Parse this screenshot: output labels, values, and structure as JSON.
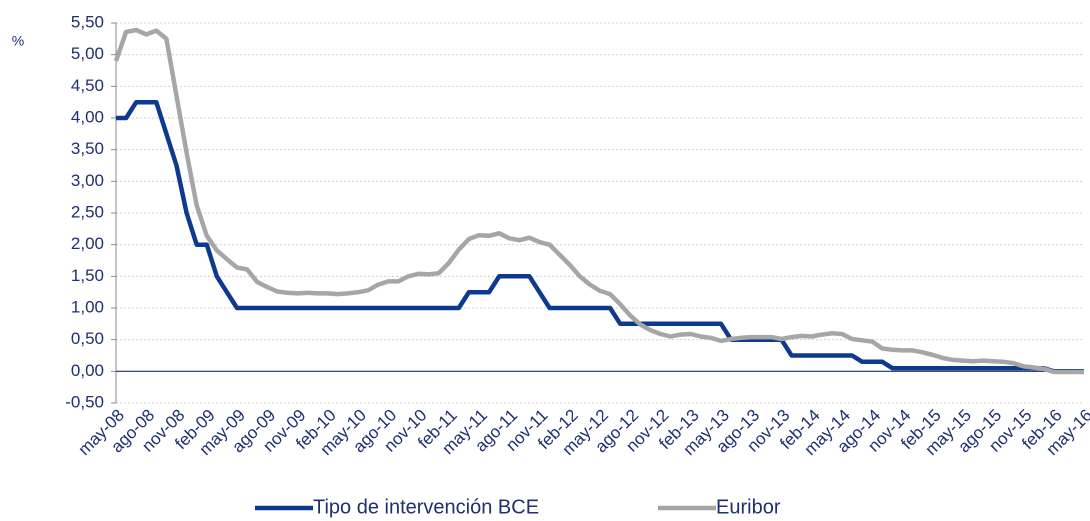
{
  "chart_data": {
    "type": "line",
    "ylabel": "%",
    "categories": [
      "may-08",
      null,
      null,
      "ago-08",
      null,
      null,
      "nov-08",
      null,
      null,
      "feb-09",
      null,
      null,
      "may-09",
      null,
      null,
      "ago-09",
      null,
      null,
      "nov-09",
      null,
      null,
      "feb-10",
      null,
      null,
      "may-10",
      null,
      null,
      "ago-10",
      null,
      null,
      "nov-10",
      null,
      null,
      "feb-11",
      null,
      null,
      "may-11",
      null,
      null,
      "ago-11",
      null,
      null,
      "nov-11",
      null,
      null,
      "feb-12",
      null,
      null,
      "may-12",
      null,
      null,
      "ago-12",
      null,
      null,
      "nov-12",
      null,
      null,
      "feb-13",
      null,
      null,
      "may-13",
      null,
      null,
      "ago-13",
      null,
      null,
      "nov-13",
      null,
      null,
      "feb-14",
      null,
      null,
      "may-14",
      null,
      null,
      "ago-14",
      null,
      null,
      "nov-14",
      null,
      null,
      "feb-15",
      null,
      null,
      "may-15",
      null,
      null,
      "ago-15",
      null,
      null,
      "nov-15",
      null,
      null,
      "feb-16",
      null,
      null,
      "may-16"
    ],
    "series": [
      {
        "name": "Tipo de intervención BCE",
        "color": "#0d3a8e",
        "values": [
          4.0,
          4.0,
          4.25,
          4.25,
          4.25,
          3.75,
          3.25,
          2.5,
          2.0,
          2.0,
          1.5,
          1.25,
          1.0,
          1.0,
          1.0,
          1.0,
          1.0,
          1.0,
          1.0,
          1.0,
          1.0,
          1.0,
          1.0,
          1.0,
          1.0,
          1.0,
          1.0,
          1.0,
          1.0,
          1.0,
          1.0,
          1.0,
          1.0,
          1.0,
          1.0,
          1.25,
          1.25,
          1.25,
          1.5,
          1.5,
          1.5,
          1.5,
          1.25,
          1.0,
          1.0,
          1.0,
          1.0,
          1.0,
          1.0,
          1.0,
          0.75,
          0.75,
          0.75,
          0.75,
          0.75,
          0.75,
          0.75,
          0.75,
          0.75,
          0.75,
          0.75,
          0.5,
          0.5,
          0.5,
          0.5,
          0.5,
          0.5,
          0.25,
          0.25,
          0.25,
          0.25,
          0.25,
          0.25,
          0.25,
          0.15,
          0.15,
          0.15,
          0.05,
          0.05,
          0.05,
          0.05,
          0.05,
          0.05,
          0.05,
          0.05,
          0.05,
          0.05,
          0.05,
          0.05,
          0.05,
          0.05,
          0.05,
          0.05,
          0.0,
          0.0,
          0.0,
          0.0
        ]
      },
      {
        "name": "Euribor",
        "color": "#a6a6a6",
        "values": [
          4.9,
          5.36,
          5.39,
          5.32,
          5.38,
          5.25,
          4.35,
          3.45,
          2.62,
          2.14,
          1.91,
          1.77,
          1.64,
          1.61,
          1.41,
          1.33,
          1.26,
          1.24,
          1.23,
          1.24,
          1.23,
          1.23,
          1.22,
          1.23,
          1.25,
          1.28,
          1.37,
          1.42,
          1.42,
          1.5,
          1.54,
          1.53,
          1.55,
          1.71,
          1.92,
          2.09,
          2.15,
          2.14,
          2.18,
          2.1,
          2.07,
          2.11,
          2.04,
          2.0,
          1.84,
          1.68,
          1.5,
          1.37,
          1.27,
          1.22,
          1.06,
          0.88,
          0.74,
          0.65,
          0.59,
          0.55,
          0.58,
          0.59,
          0.55,
          0.53,
          0.48,
          0.51,
          0.53,
          0.54,
          0.54,
          0.54,
          0.51,
          0.54,
          0.56,
          0.55,
          0.58,
          0.6,
          0.59,
          0.51,
          0.49,
          0.47,
          0.36,
          0.34,
          0.33,
          0.33,
          0.3,
          0.26,
          0.21,
          0.18,
          0.17,
          0.16,
          0.17,
          0.16,
          0.15,
          0.13,
          0.08,
          0.06,
          0.04,
          -0.01,
          -0.01,
          -0.01,
          -0.01
        ]
      }
    ],
    "ylim": [
      -0.5,
      5.5
    ],
    "yticks": [
      {
        "value": -0.5,
        "label": "-0,50"
      },
      {
        "value": 0,
        "label": "0,00"
      },
      {
        "value": 0.5,
        "label": "0,50"
      },
      {
        "value": 1,
        "label": "1,00"
      },
      {
        "value": 1.5,
        "label": "1,50"
      },
      {
        "value": 2,
        "label": "2,00"
      },
      {
        "value": 2.5,
        "label": "2,50"
      },
      {
        "value": 3,
        "label": "3,00"
      },
      {
        "value": 3.5,
        "label": "3,50"
      },
      {
        "value": 4,
        "label": "4,00"
      },
      {
        "value": 4.5,
        "label": "4,50"
      },
      {
        "value": 5,
        "label": "5,00"
      },
      {
        "value": 5.5,
        "label": "5,50"
      }
    ],
    "grid": true
  }
}
